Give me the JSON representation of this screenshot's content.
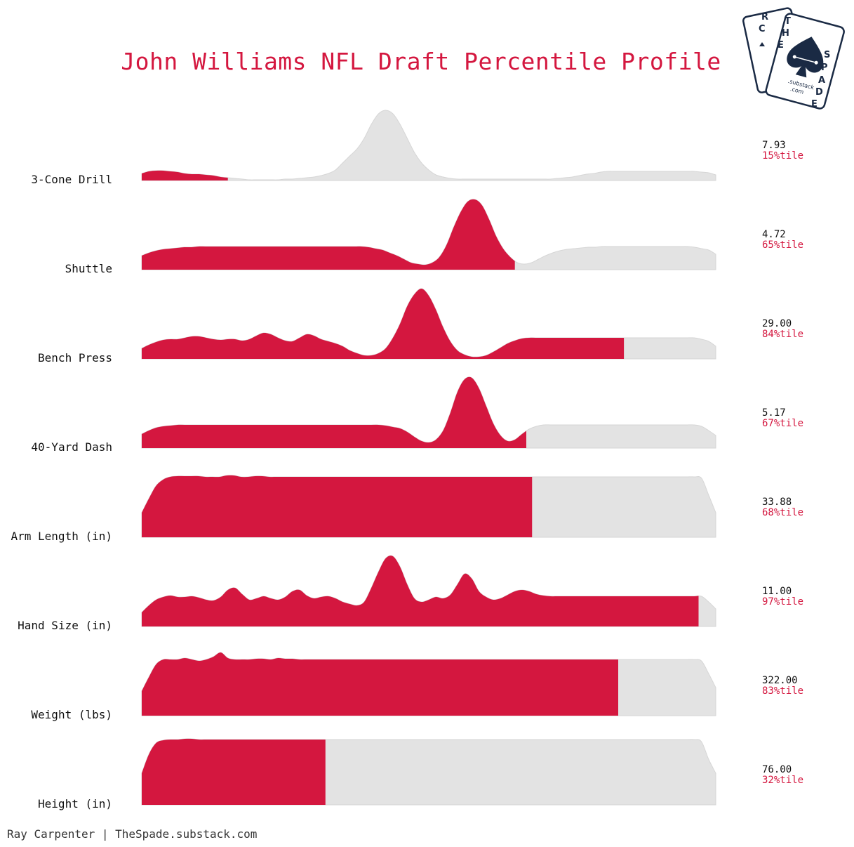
{
  "colors": {
    "accent": "#d4173f",
    "density_bg": "#e3e3e3",
    "text": "#111111",
    "logo": "#1a2a44"
  },
  "logo": {
    "icon": "spade-card-logo-icon",
    "letters_left": [
      "R",
      "C"
    ],
    "letters_right": [
      "T",
      "H",
      "E",
      "S",
      "P",
      "A",
      "D",
      "E"
    ],
    "sub1": ".substack",
    "sub2": ".com"
  },
  "credit": "Ray Carpenter | TheSpade.substack.com",
  "chart_data": {
    "type": "ridgeline",
    "title": "John Williams NFL Draft Percentile Profile",
    "xlim": [
      0,
      100
    ],
    "rows": [
      {
        "label": "3-Cone Drill",
        "raw": "7.93",
        "pct_label": "15%tile",
        "percentile": 15,
        "density": [
          0.1,
          0.13,
          0.14,
          0.14,
          0.13,
          0.12,
          0.1,
          0.09,
          0.09,
          0.08,
          0.07,
          0.05,
          0.04,
          0.03,
          0.02,
          0.01,
          0.01,
          0.01,
          0.01,
          0.01,
          0.02,
          0.02,
          0.03,
          0.04,
          0.05,
          0.07,
          0.1,
          0.15,
          0.25,
          0.35,
          0.45,
          0.6,
          0.8,
          0.95,
          1.0,
          0.95,
          0.8,
          0.6,
          0.4,
          0.25,
          0.15,
          0.08,
          0.05,
          0.03,
          0.02,
          0.02,
          0.02,
          0.02,
          0.02,
          0.02,
          0.02,
          0.02,
          0.02,
          0.02,
          0.02,
          0.02,
          0.02,
          0.02,
          0.03,
          0.04,
          0.05,
          0.07,
          0.09,
          0.1,
          0.12,
          0.13,
          0.13,
          0.13,
          0.13,
          0.13,
          0.13,
          0.13,
          0.13,
          0.13,
          0.13,
          0.13,
          0.13,
          0.13,
          0.12,
          0.11,
          0.08
        ]
      },
      {
        "label": "Shuttle",
        "raw": "4.72",
        "pct_label": "65%tile",
        "percentile": 65,
        "density": [
          0.2,
          0.24,
          0.27,
          0.29,
          0.3,
          0.31,
          0.32,
          0.32,
          0.33,
          0.33,
          0.33,
          0.33,
          0.33,
          0.33,
          0.33,
          0.33,
          0.33,
          0.33,
          0.33,
          0.33,
          0.33,
          0.33,
          0.33,
          0.33,
          0.33,
          0.33,
          0.33,
          0.33,
          0.33,
          0.33,
          0.33,
          0.33,
          0.32,
          0.3,
          0.28,
          0.24,
          0.2,
          0.15,
          0.1,
          0.08,
          0.07,
          0.1,
          0.18,
          0.35,
          0.6,
          0.82,
          0.97,
          1.0,
          0.92,
          0.72,
          0.48,
          0.3,
          0.18,
          0.1,
          0.08,
          0.1,
          0.15,
          0.2,
          0.24,
          0.27,
          0.29,
          0.3,
          0.31,
          0.32,
          0.32,
          0.33,
          0.33,
          0.33,
          0.33,
          0.33,
          0.33,
          0.33,
          0.33,
          0.33,
          0.33,
          0.33,
          0.33,
          0.33,
          0.32,
          0.3,
          0.28,
          0.22
        ]
      },
      {
        "label": "Bench Press",
        "raw": "29.00",
        "pct_label": "84%tile",
        "percentile": 84,
        "density": [
          0.15,
          0.2,
          0.24,
          0.27,
          0.28,
          0.28,
          0.3,
          0.32,
          0.32,
          0.3,
          0.28,
          0.27,
          0.28,
          0.28,
          0.26,
          0.28,
          0.33,
          0.37,
          0.35,
          0.3,
          0.26,
          0.25,
          0.3,
          0.35,
          0.33,
          0.28,
          0.25,
          0.22,
          0.18,
          0.12,
          0.08,
          0.05,
          0.05,
          0.08,
          0.15,
          0.3,
          0.5,
          0.75,
          0.92,
          1.0,
          0.9,
          0.7,
          0.45,
          0.25,
          0.12,
          0.06,
          0.03,
          0.03,
          0.05,
          0.1,
          0.16,
          0.22,
          0.26,
          0.29,
          0.3,
          0.3,
          0.3,
          0.3,
          0.3,
          0.3,
          0.3,
          0.3,
          0.3,
          0.3,
          0.3,
          0.3,
          0.3,
          0.3,
          0.3,
          0.3,
          0.3,
          0.3,
          0.3,
          0.3,
          0.3,
          0.3,
          0.3,
          0.3,
          0.28,
          0.25,
          0.18
        ]
      },
      {
        "label": "40-Yard Dash",
        "raw": "5.17",
        "pct_label": "67%tile",
        "percentile": 67,
        "density": [
          0.2,
          0.25,
          0.29,
          0.31,
          0.32,
          0.33,
          0.33,
          0.33,
          0.33,
          0.33,
          0.33,
          0.33,
          0.33,
          0.33,
          0.33,
          0.33,
          0.33,
          0.33,
          0.33,
          0.33,
          0.33,
          0.33,
          0.33,
          0.33,
          0.33,
          0.33,
          0.33,
          0.33,
          0.33,
          0.33,
          0.33,
          0.33,
          0.33,
          0.33,
          0.32,
          0.3,
          0.28,
          0.23,
          0.16,
          0.1,
          0.08,
          0.12,
          0.25,
          0.5,
          0.8,
          0.98,
          1.0,
          0.85,
          0.6,
          0.35,
          0.18,
          0.1,
          0.12,
          0.2,
          0.27,
          0.31,
          0.33,
          0.33,
          0.33,
          0.33,
          0.33,
          0.33,
          0.33,
          0.33,
          0.33,
          0.33,
          0.33,
          0.33,
          0.33,
          0.33,
          0.33,
          0.33,
          0.33,
          0.33,
          0.33,
          0.33,
          0.33,
          0.33,
          0.31,
          0.25,
          0.18
        ]
      },
      {
        "label": "Arm Length (in)",
        "raw": "33.88",
        "pct_label": "68%tile",
        "percentile": 68,
        "density": [
          0.35,
          0.55,
          0.73,
          0.82,
          0.86,
          0.87,
          0.87,
          0.87,
          0.87,
          0.86,
          0.86,
          0.86,
          0.88,
          0.88,
          0.86,
          0.86,
          0.87,
          0.87,
          0.86,
          0.86,
          0.86,
          0.86,
          0.86,
          0.86,
          0.86,
          0.86,
          0.86,
          0.86,
          0.86,
          0.86,
          0.86,
          0.86,
          0.86,
          0.86,
          0.86,
          0.86,
          0.86,
          0.86,
          0.86,
          0.86,
          0.86,
          0.86,
          0.86,
          0.86,
          0.86,
          0.86,
          0.86,
          0.86,
          0.86,
          0.86,
          0.86,
          0.86,
          0.86,
          0.86,
          0.86,
          0.86,
          0.86,
          0.86,
          0.86,
          0.86,
          0.86,
          0.86,
          0.86,
          0.86,
          0.86,
          0.86,
          0.86,
          0.86,
          0.86,
          0.86,
          0.86,
          0.86,
          0.86,
          0.86,
          0.86,
          0.86,
          0.86,
          0.86,
          0.86,
          0.84,
          0.6,
          0.35
        ]
      },
      {
        "label": "Hand Size (in)",
        "raw": "11.00",
        "pct_label": "97%tile",
        "percentile": 97,
        "density": [
          0.2,
          0.3,
          0.38,
          0.42,
          0.44,
          0.42,
          0.42,
          0.43,
          0.41,
          0.38,
          0.37,
          0.42,
          0.52,
          0.55,
          0.46,
          0.38,
          0.4,
          0.43,
          0.4,
          0.38,
          0.42,
          0.5,
          0.52,
          0.44,
          0.4,
          0.42,
          0.43,
          0.4,
          0.35,
          0.32,
          0.3,
          0.35,
          0.55,
          0.78,
          0.97,
          1.0,
          0.85,
          0.6,
          0.4,
          0.35,
          0.38,
          0.42,
          0.4,
          0.45,
          0.6,
          0.75,
          0.68,
          0.5,
          0.42,
          0.38,
          0.4,
          0.45,
          0.5,
          0.52,
          0.5,
          0.46,
          0.44,
          0.43,
          0.43,
          0.43,
          0.43,
          0.43,
          0.43,
          0.43,
          0.43,
          0.43,
          0.43,
          0.43,
          0.43,
          0.43,
          0.43,
          0.43,
          0.43,
          0.43,
          0.43,
          0.43,
          0.43,
          0.43,
          0.43,
          0.35,
          0.25
        ]
      },
      {
        "label": "Weight (lbs)",
        "raw": "322.00",
        "pct_label": "83%tile",
        "percentile": 83,
        "density": [
          0.35,
          0.55,
          0.73,
          0.8,
          0.8,
          0.8,
          0.82,
          0.8,
          0.78,
          0.8,
          0.84,
          0.9,
          0.82,
          0.8,
          0.8,
          0.8,
          0.81,
          0.81,
          0.8,
          0.82,
          0.81,
          0.81,
          0.8,
          0.8,
          0.8,
          0.8,
          0.8,
          0.8,
          0.8,
          0.8,
          0.8,
          0.8,
          0.8,
          0.8,
          0.8,
          0.8,
          0.8,
          0.8,
          0.8,
          0.8,
          0.8,
          0.8,
          0.8,
          0.8,
          0.8,
          0.8,
          0.8,
          0.8,
          0.8,
          0.8,
          0.8,
          0.8,
          0.8,
          0.8,
          0.8,
          0.8,
          0.8,
          0.8,
          0.8,
          0.8,
          0.8,
          0.8,
          0.8,
          0.8,
          0.8,
          0.8,
          0.8,
          0.8,
          0.8,
          0.8,
          0.8,
          0.8,
          0.8,
          0.8,
          0.8,
          0.8,
          0.8,
          0.8,
          0.78,
          0.6,
          0.4
        ]
      },
      {
        "label": "Height (in)",
        "raw": "76.00",
        "pct_label": "32%tile",
        "percentile": 32,
        "density": [
          0.45,
          0.72,
          0.88,
          0.92,
          0.93,
          0.93,
          0.94,
          0.94,
          0.93,
          0.93,
          0.93,
          0.93,
          0.93,
          0.93,
          0.93,
          0.93,
          0.93,
          0.93,
          0.93,
          0.93,
          0.93,
          0.93,
          0.93,
          0.93,
          0.93,
          0.93,
          0.93,
          0.93,
          0.93,
          0.93,
          0.93,
          0.93,
          0.93,
          0.93,
          0.93,
          0.93,
          0.93,
          0.93,
          0.93,
          0.93,
          0.93,
          0.93,
          0.93,
          0.93,
          0.93,
          0.93,
          0.93,
          0.93,
          0.93,
          0.93,
          0.93,
          0.93,
          0.93,
          0.93,
          0.93,
          0.93,
          0.93,
          0.93,
          0.93,
          0.93,
          0.93,
          0.93,
          0.93,
          0.93,
          0.93,
          0.93,
          0.93,
          0.93,
          0.93,
          0.93,
          0.93,
          0.93,
          0.93,
          0.93,
          0.93,
          0.93,
          0.93,
          0.93,
          0.9,
          0.65,
          0.45
        ]
      }
    ]
  }
}
